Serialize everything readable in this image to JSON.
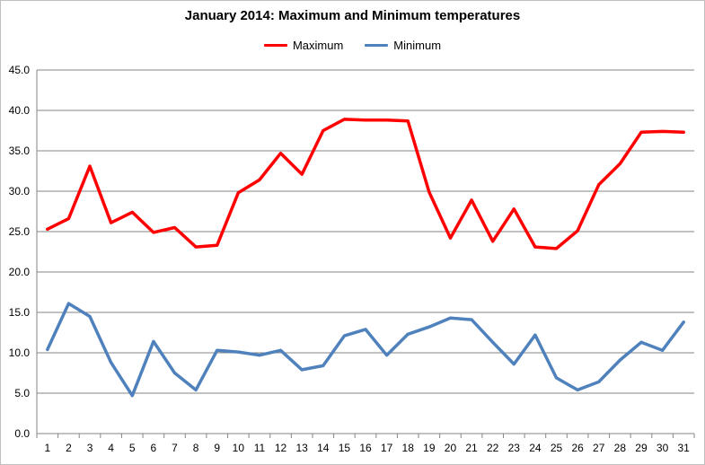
{
  "chart_data": {
    "type": "line",
    "title": "January 2014: Maximum and Minimum temperatures",
    "xlabel": "",
    "ylabel": "",
    "x": [
      1,
      2,
      3,
      4,
      5,
      6,
      7,
      8,
      9,
      10,
      11,
      12,
      13,
      14,
      15,
      16,
      17,
      18,
      19,
      20,
      21,
      22,
      23,
      24,
      25,
      26,
      27,
      28,
      29,
      30,
      31
    ],
    "x_tick_labels": [
      "1",
      "2",
      "3",
      "4",
      "5",
      "6",
      "7",
      "8",
      "9",
      "10",
      "11",
      "12",
      "13",
      "14",
      "15",
      "16",
      "17",
      "18",
      "19",
      "20",
      "21",
      "22",
      "23",
      "24",
      "25",
      "26",
      "27",
      "28",
      "29",
      "30",
      "31"
    ],
    "ylim": [
      0,
      45
    ],
    "y_tick_labels": [
      "0.0",
      "5.0",
      "10.0",
      "15.0",
      "20.0",
      "25.0",
      "30.0",
      "35.0",
      "40.0",
      "45.0"
    ],
    "grid": "horizontal",
    "legend_position": "top",
    "series": [
      {
        "name": "Maximum",
        "color": "#ff0000",
        "values": [
          25.3,
          26.6,
          33.1,
          26.1,
          27.4,
          24.9,
          25.5,
          23.1,
          23.3,
          29.8,
          31.4,
          34.7,
          32.1,
          37.5,
          38.9,
          38.8,
          38.8,
          38.7,
          29.9,
          24.2,
          28.9,
          23.8,
          27.8,
          23.1,
          22.9,
          25.1,
          30.8,
          33.4,
          37.3,
          37.4,
          37.3
        ]
      },
      {
        "name": "Minimum",
        "color": "#4f81bd",
        "values": [
          10.4,
          16.1,
          14.5,
          8.8,
          4.7,
          11.4,
          7.5,
          5.4,
          10.3,
          10.1,
          9.7,
          10.3,
          7.9,
          8.4,
          12.1,
          12.9,
          9.7,
          12.3,
          13.2,
          14.3,
          14.1,
          11.3,
          8.6,
          12.2,
          6.9,
          5.4,
          6.4,
          9.1,
          11.3,
          10.3,
          13.8
        ]
      }
    ]
  }
}
